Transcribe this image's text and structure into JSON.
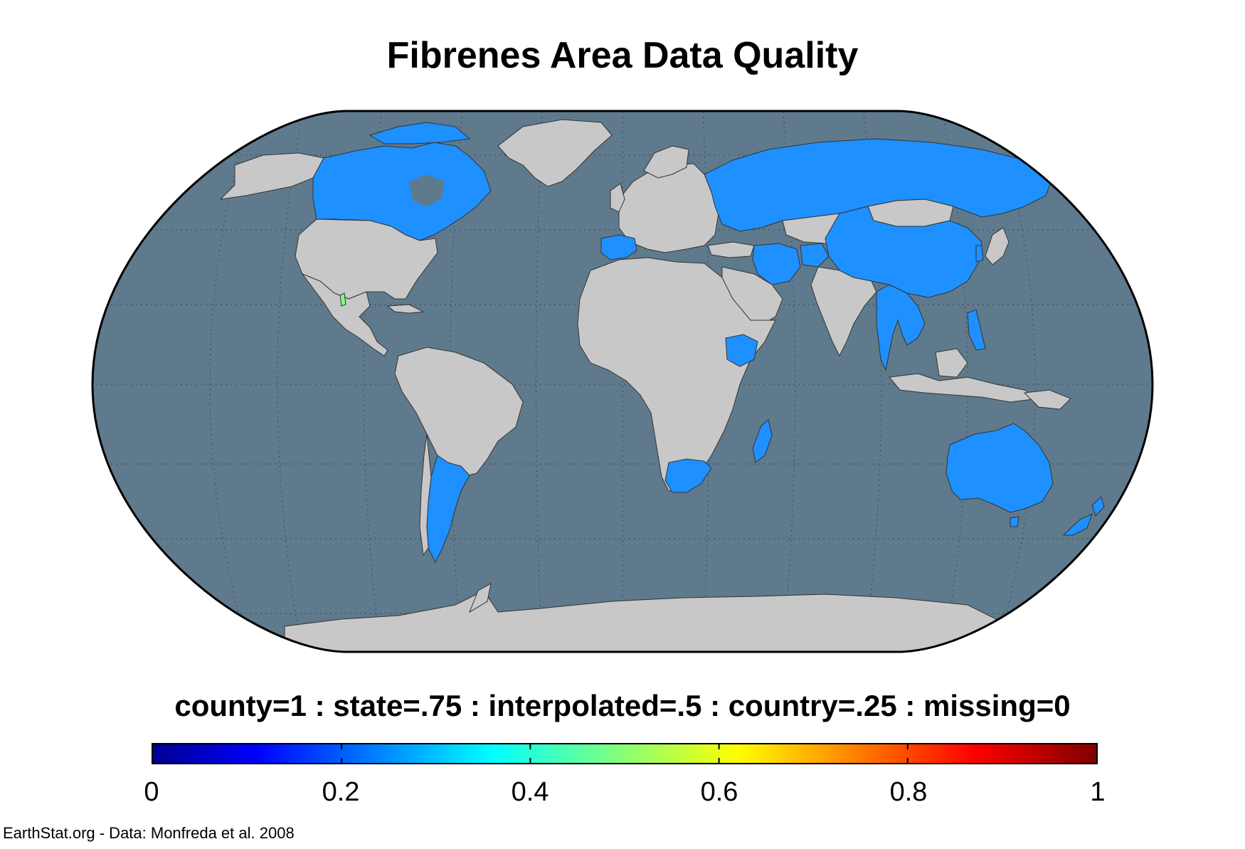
{
  "title": "Fibrenes Area Data Quality",
  "legend_title": "county=1 : state=.75 : interpolated=.5 : country=.25 : missing=0",
  "colorbar": {
    "min": 0,
    "max": 1,
    "ticks": [
      "0",
      "0.2",
      "0.4",
      "0.6",
      "0.8",
      "1"
    ],
    "colormap": "jet"
  },
  "credit": "EarthStat.org - Data: Monfreda et al. 2008",
  "colors": {
    "ocean": "#5f7a8c",
    "land_missing": "#c8c8c8",
    "country_level": "#1e90ff",
    "interpolated": "#7fff7f"
  },
  "map": {
    "projection": "Robinson",
    "graticule": "dotted",
    "country_level_regions": [
      "Canada",
      "Russia",
      "China",
      "Spain",
      "Iran",
      "Ethiopia",
      "Argentina",
      "South Africa",
      "Australia",
      "New Zealand",
      "Madagascar",
      "Myanmar",
      "Thailand",
      "Vietnam",
      "Philippines",
      "Malaysia",
      "Kyrgyzstan",
      "Afghanistan",
      "Turkey"
    ],
    "missing_regions": [
      "United States",
      "Mexico",
      "Brazil",
      "Africa",
      "Europe",
      "India",
      "Mongolia",
      "Greenland",
      "Antarctica"
    ]
  }
}
